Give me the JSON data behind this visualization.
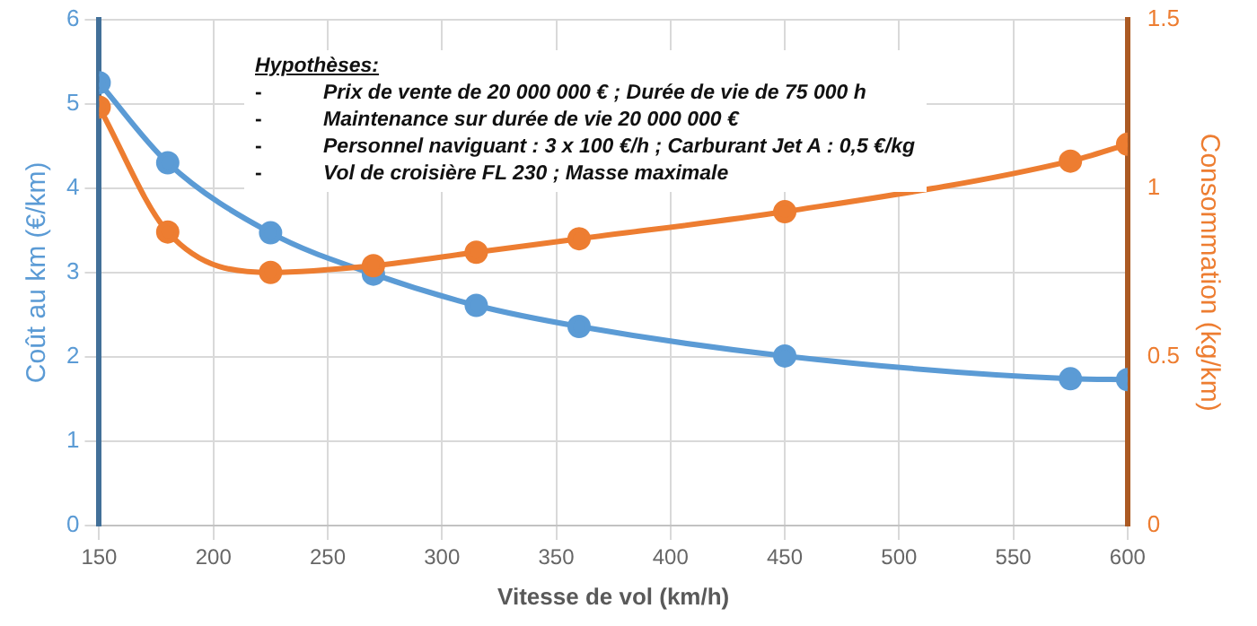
{
  "chart_data": {
    "type": "line",
    "xlabel": "Vitesse de vol (km/h)",
    "ylabel": "Coût au km (€/km)",
    "y2label": "Consommation (kg/km)",
    "x": [
      150,
      180,
      225,
      270,
      315,
      360,
      450,
      575,
      600
    ],
    "series": [
      {
        "color": "#5b9bd5",
        "values": [
          5.25,
          4.3,
          3.47,
          2.98,
          2.61,
          2.36,
          2.01,
          1.74,
          1.73
        ]
      },
      {
        "color": "#ed7d31",
        "axis": "y2",
        "values": [
          1.24,
          0.87,
          0.75,
          0.77,
          0.81,
          0.85,
          0.93,
          1.08,
          1.13
        ]
      }
    ],
    "xlim": [
      150,
      600
    ],
    "xticks": [
      150,
      200,
      250,
      300,
      350,
      400,
      450,
      500,
      550,
      600
    ],
    "ylim": [
      0,
      6
    ],
    "yticks": [
      0,
      1,
      2,
      3,
      4,
      5,
      6
    ],
    "y2lim": [
      0,
      1.5
    ],
    "y2ticks": [
      0,
      0.5,
      1,
      1.5
    ],
    "annotations": [
      "Hypothèses:",
      "- Prix de vente de 20 000 000 € ; Durée de vie de 75 000 h",
      "- Maintenance sur durée de vie 20 000 000 €",
      "- Personnel naviguant : 3 x 100 €/h ; Carburant Jet A : 0,5 €/kg",
      "- Vol de croisière FL 230 ; Masse maximale"
    ],
    "grid": true,
    "legend": false,
    "marker": "circle",
    "line_style": "solid"
  }
}
